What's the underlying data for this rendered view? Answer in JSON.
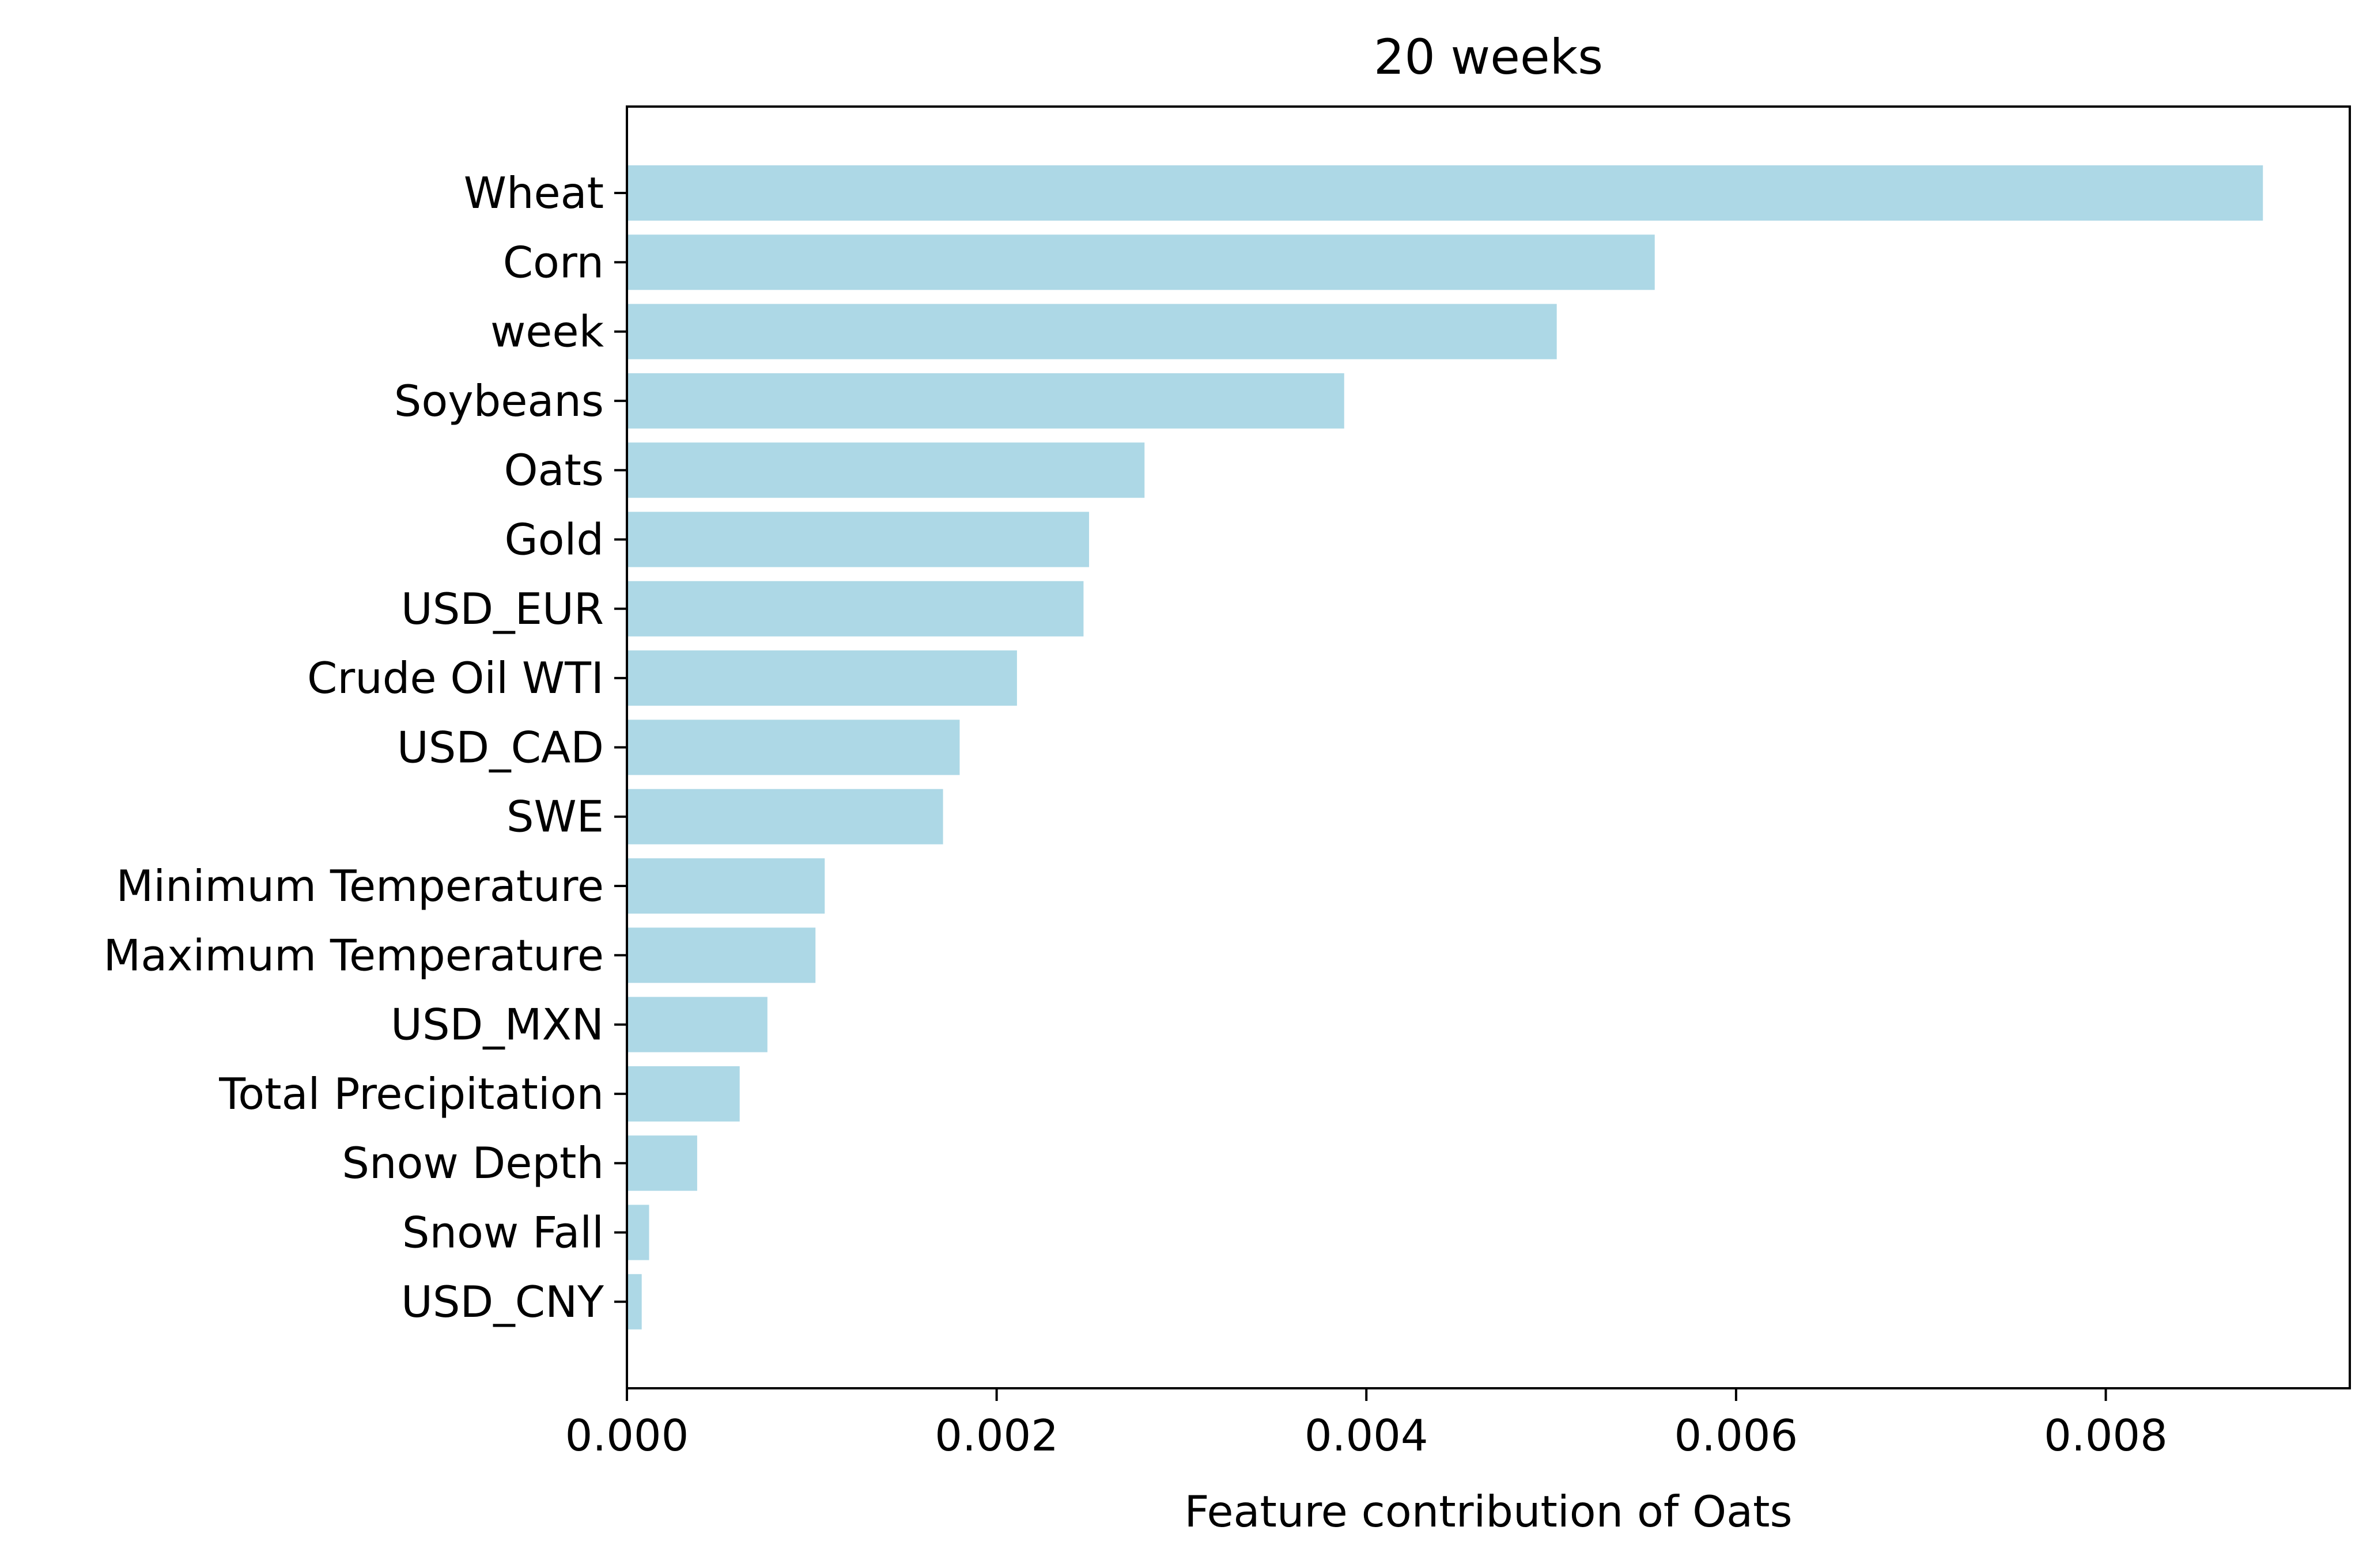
{
  "chart_data": {
    "type": "bar",
    "orientation": "horizontal",
    "title": "20 weeks",
    "xlabel": "Feature contribution of Oats",
    "ylabel": "",
    "xlim": [
      0,
      0.00932
    ],
    "xticks": [
      0.0,
      0.002,
      0.004,
      0.006,
      0.008
    ],
    "xtick_labels": [
      "0.000",
      "0.002",
      "0.004",
      "0.006",
      "0.008"
    ],
    "grid": false,
    "bar_color": "#add8e6",
    "categories": [
      "Wheat",
      "Corn",
      "week",
      "Soybeans",
      "Oats",
      "Gold",
      "USD_EUR",
      "Crude Oil WTI",
      "USD_CAD",
      "SWE",
      "Minimum Temperature",
      "Maximum Temperature",
      "USD_MXN",
      "Total Precipitation",
      "Snow Depth",
      "Snow Fall",
      "USD_CNY"
    ],
    "values": [
      0.00885,
      0.00556,
      0.00503,
      0.00388,
      0.0028,
      0.0025,
      0.00247,
      0.00211,
      0.0018,
      0.00171,
      0.00107,
      0.00102,
      0.00076,
      0.00061,
      0.00038,
      0.00012,
      8e-05
    ]
  }
}
